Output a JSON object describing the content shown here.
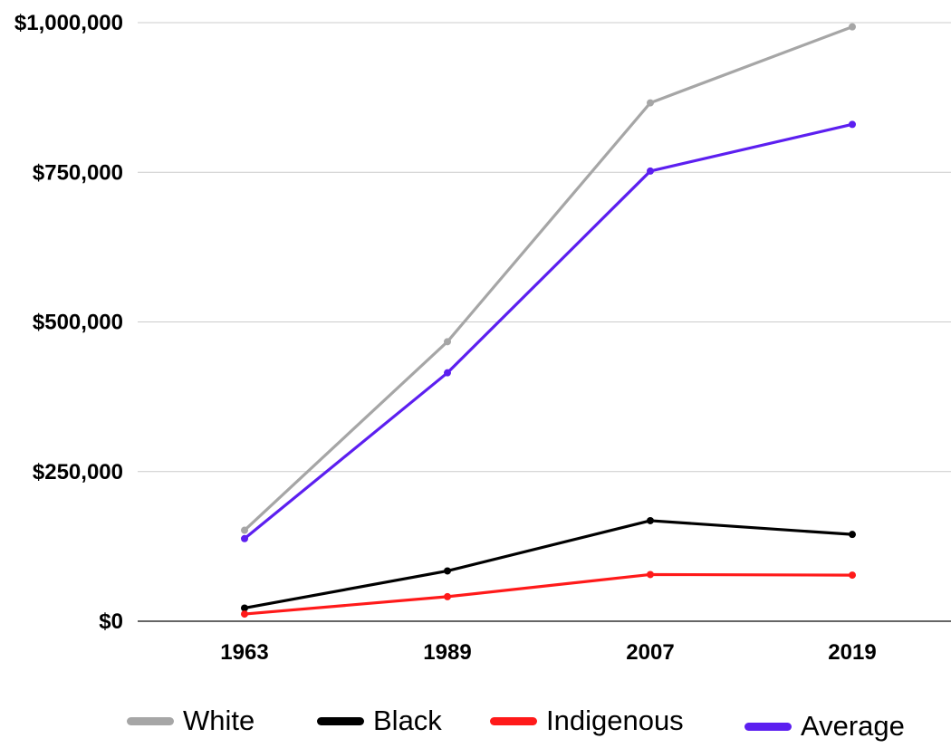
{
  "chart_data": {
    "type": "line",
    "categories": [
      "1963",
      "1989",
      "2007",
      "2019"
    ],
    "ylim": [
      0,
      1000000
    ],
    "yticks": [
      {
        "value": 0,
        "label": "$0"
      },
      {
        "value": 250000,
        "label": "$250,000"
      },
      {
        "value": 500000,
        "label": "$500,000"
      },
      {
        "value": 750000,
        "label": "$750,000"
      },
      {
        "value": 1000000,
        "label": "$1,000,000"
      }
    ],
    "grid": true,
    "legend_position": "bottom",
    "series": [
      {
        "name": "White",
        "color": "#a6a6a6",
        "values": [
          152000,
          467000,
          866000,
          993000
        ]
      },
      {
        "name": "Black",
        "color": "#000000",
        "values": [
          22000,
          84000,
          168000,
          145000
        ]
      },
      {
        "name": "Indigenous",
        "color": "#ff1a1a",
        "values": [
          12000,
          41000,
          78000,
          77000
        ]
      },
      {
        "name": "Average",
        "color": "#5c1ff0",
        "values": [
          138000,
          415000,
          752000,
          830000
        ]
      }
    ]
  }
}
